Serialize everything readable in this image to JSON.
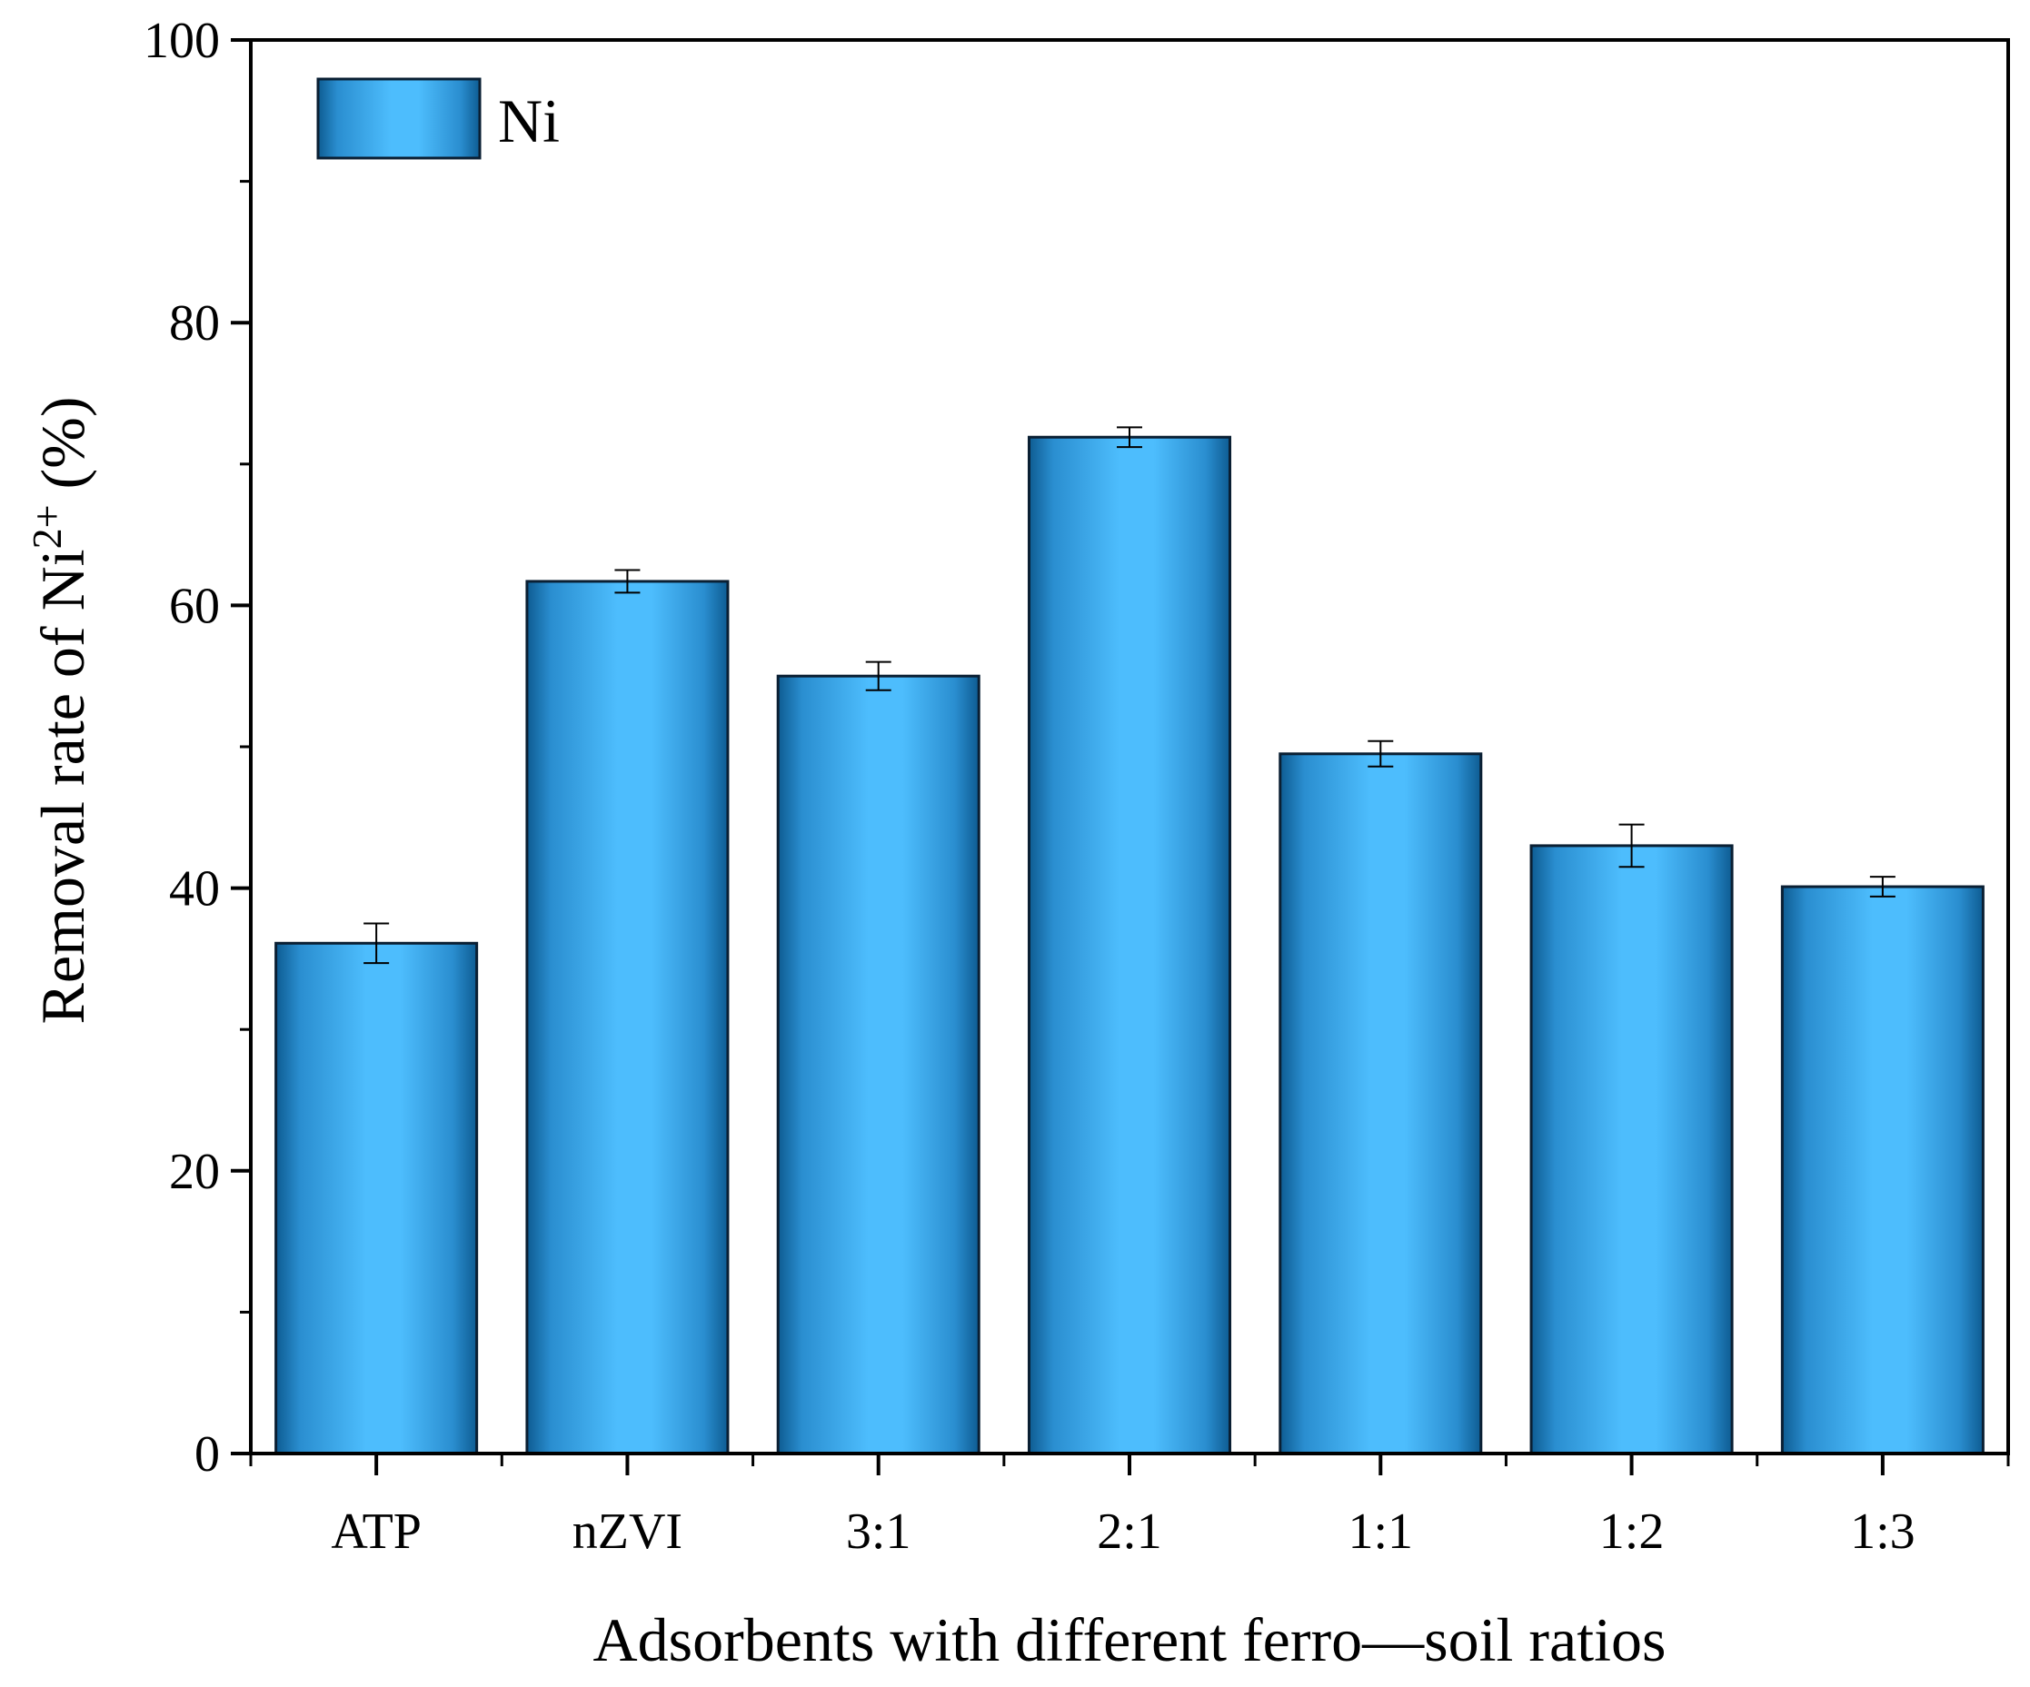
{
  "chart_data": {
    "type": "bar",
    "title": "",
    "xlabel": "Adsorbents with different ferro—soil ratios",
    "ylabel": {
      "prefix": "Removal rate of Ni",
      "superscript": "2+",
      "suffix": " (%)"
    },
    "ylim": [
      0,
      100
    ],
    "yticks": [
      0,
      20,
      40,
      60,
      80,
      100
    ],
    "categories": [
      "ATP",
      "nZVI",
      "3:1",
      "2:1",
      "1:1",
      "1:2",
      "1:3"
    ],
    "series": [
      {
        "name": "Ni",
        "values": [
          36.1,
          61.7,
          55.0,
          71.9,
          49.5,
          43.0,
          40.1
        ],
        "errors": [
          1.4,
          0.8,
          1.0,
          0.7,
          0.9,
          1.5,
          0.7
        ]
      }
    ],
    "legend": {
      "position": "top-left",
      "entries": [
        "Ni"
      ]
    },
    "colors": {
      "bar_dark": "#0e5c92",
      "bar_mid": "#2a8ed0",
      "bar_light": "#4dbdfd",
      "bar_outline": "#0a1f33",
      "axis": "#000000"
    }
  }
}
